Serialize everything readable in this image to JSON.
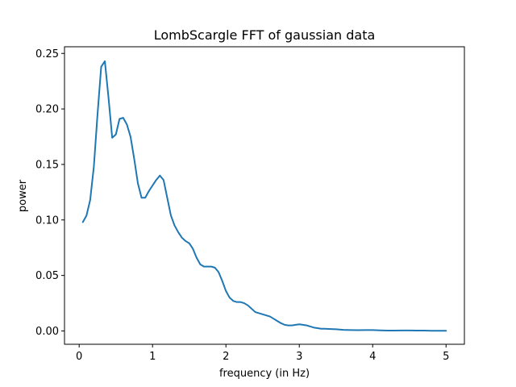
{
  "chart_data": {
    "type": "line",
    "title": "LombScargle FFT of gaussian data",
    "xlabel": "frequency (in Hz)",
    "ylabel": "power",
    "xlim": [
      -0.2,
      5.25
    ],
    "ylim": [
      -0.012,
      0.256
    ],
    "xticks": [
      0,
      1,
      2,
      3,
      4,
      5
    ],
    "yticks": [
      0.0,
      0.05,
      0.1,
      0.15,
      0.2,
      0.25
    ],
    "xtick_labels": [
      "0",
      "1",
      "2",
      "3",
      "4",
      "5"
    ],
    "ytick_labels": [
      "0.00",
      "0.05",
      "0.10",
      "0.15",
      "0.20",
      "0.25"
    ],
    "grid": false,
    "legend": "none",
    "series": [
      {
        "color": "#1f77b4",
        "x": [
          0.05,
          0.1,
          0.15,
          0.2,
          0.25,
          0.3,
          0.35,
          0.4,
          0.45,
          0.5,
          0.55,
          0.6,
          0.65,
          0.7,
          0.75,
          0.8,
          0.85,
          0.9,
          0.95,
          1.0,
          1.05,
          1.1,
          1.15,
          1.2,
          1.25,
          1.3,
          1.35,
          1.4,
          1.45,
          1.5,
          1.55,
          1.6,
          1.65,
          1.7,
          1.75,
          1.8,
          1.85,
          1.9,
          1.95,
          2.0,
          2.05,
          2.1,
          2.15,
          2.2,
          2.25,
          2.3,
          2.35,
          2.4,
          2.45,
          2.5,
          2.55,
          2.6,
          2.65,
          2.7,
          2.75,
          2.8,
          2.85,
          2.9,
          2.95,
          3.0,
          3.05,
          3.1,
          3.15,
          3.2,
          3.25,
          3.3,
          3.35,
          3.4,
          3.5,
          3.6,
          3.7,
          3.8,
          3.9,
          4.0,
          4.1,
          4.2,
          4.3,
          4.4,
          4.5,
          4.6,
          4.7,
          4.8,
          4.9,
          5.0
        ],
        "y": [
          0.098,
          0.104,
          0.118,
          0.148,
          0.195,
          0.238,
          0.243,
          0.21,
          0.174,
          0.177,
          0.191,
          0.192,
          0.186,
          0.175,
          0.155,
          0.133,
          0.12,
          0.12,
          0.126,
          0.131,
          0.136,
          0.14,
          0.136,
          0.12,
          0.104,
          0.095,
          0.089,
          0.084,
          0.081,
          0.079,
          0.074,
          0.066,
          0.06,
          0.058,
          0.058,
          0.058,
          0.057,
          0.053,
          0.045,
          0.036,
          0.03,
          0.027,
          0.026,
          0.026,
          0.025,
          0.023,
          0.02,
          0.017,
          0.016,
          0.015,
          0.014,
          0.013,
          0.011,
          0.009,
          0.007,
          0.0055,
          0.005,
          0.005,
          0.0055,
          0.006,
          0.0055,
          0.005,
          0.004,
          0.003,
          0.0025,
          0.002,
          0.002,
          0.0018,
          0.0015,
          0.001,
          0.0008,
          0.0007,
          0.0008,
          0.0008,
          0.0005,
          0.0003,
          0.0003,
          0.0004,
          0.0004,
          0.0003,
          0.0003,
          0.0002,
          0.0002,
          0.0002
        ]
      }
    ]
  }
}
